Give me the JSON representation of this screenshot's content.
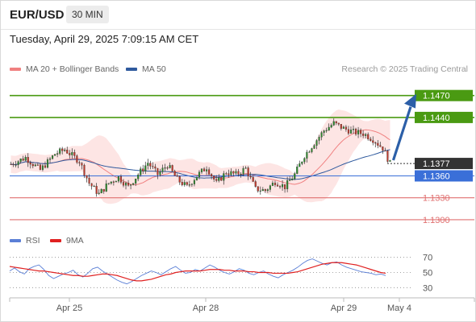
{
  "header": {
    "symbol": "EUR/USD",
    "timeframe": "30 MIN"
  },
  "datetime": "Tuesday, April 29, 2025 7:09:15 AM CET",
  "legend": {
    "ma20": {
      "label": "MA 20 + Bollinger Bands",
      "color": "#f08080"
    },
    "ma50": {
      "label": "MA 50",
      "color": "#2f5a9e"
    }
  },
  "research": "Research © 2025 Trading Central",
  "rsi_legend": {
    "rsi": {
      "label": "RSI",
      "color": "#5b7fd6"
    },
    "ma9": {
      "label": "9MA",
      "color": "#e02020"
    }
  },
  "chart_data": [
    {
      "type": "candlestick",
      "ylim": [
        1.129,
        1.1495
      ],
      "x_ticks": [
        "Apr 25",
        "Apr 28",
        "Apr 29",
        "May 4"
      ],
      "levels": [
        {
          "value": 1.147,
          "label": "1.1470",
          "kind": "resistance",
          "color": "#4a9a12"
        },
        {
          "value": 1.144,
          "label": "1.1440",
          "kind": "resistance",
          "color": "#4a9a12"
        },
        {
          "value": 1.1377,
          "label": "1.1377",
          "kind": "current",
          "color": "#333333"
        },
        {
          "value": 1.136,
          "label": "1.1360",
          "kind": "pivot",
          "color": "#3a6fd8"
        },
        {
          "value": 1.133,
          "label": "1.1330",
          "kind": "support",
          "color": "#e07070"
        },
        {
          "value": 1.13,
          "label": "1.1300",
          "kind": "support",
          "color": "#e07070"
        }
      ],
      "forecast_target": 1.147,
      "candle_count": 156,
      "close_path": [
        [
          0,
          1.1376
        ],
        [
          6,
          1.1385
        ],
        [
          12,
          1.1368
        ],
        [
          18,
          1.139
        ],
        [
          22,
          1.1396
        ],
        [
          28,
          1.138
        ],
        [
          32,
          1.135
        ],
        [
          36,
          1.1335
        ],
        [
          40,
          1.135
        ],
        [
          44,
          1.1358
        ],
        [
          48,
          1.1345
        ],
        [
          52,
          1.1362
        ],
        [
          56,
          1.1378
        ],
        [
          60,
          1.1362
        ],
        [
          64,
          1.1375
        ],
        [
          68,
          1.1355
        ],
        [
          72,
          1.1345
        ],
        [
          76,
          1.136
        ],
        [
          80,
          1.1372
        ],
        [
          84,
          1.135
        ],
        [
          88,
          1.1365
        ],
        [
          92,
          1.1362
        ],
        [
          96,
          1.137
        ],
        [
          100,
          1.1342
        ],
        [
          104,
          1.134
        ],
        [
          108,
          1.1352
        ],
        [
          112,
          1.1345
        ],
        [
          116,
          1.1362
        ],
        [
          120,
          1.1388
        ],
        [
          124,
          1.1405
        ],
        [
          128,
          1.1422
        ],
        [
          132,
          1.1432
        ],
        [
          136,
          1.1425
        ],
        [
          140,
          1.142
        ],
        [
          144,
          1.1418
        ],
        [
          148,
          1.141
        ],
        [
          152,
          1.1398
        ],
        [
          155,
          1.1377
        ]
      ]
    },
    {
      "type": "line",
      "title": "RSI",
      "ylim": [
        25,
        75
      ],
      "yticks": [
        70,
        50,
        30
      ],
      "series": [
        {
          "name": "RSI",
          "color": "#5b7fd6",
          "values": [
            52,
            56,
            51,
            48,
            55,
            58,
            60,
            54,
            46,
            42,
            45,
            48,
            50,
            53,
            47,
            44,
            49,
            55,
            57,
            52,
            48,
            44,
            40,
            37,
            35,
            38,
            42,
            46,
            49,
            52,
            50,
            47,
            51,
            55,
            58,
            53,
            49,
            50,
            54,
            52,
            56,
            60,
            57,
            53,
            50,
            48,
            51,
            55,
            53,
            49,
            47,
            50,
            52,
            48,
            45,
            43,
            47,
            50,
            53,
            57,
            62,
            66,
            68,
            65,
            62,
            60,
            63,
            64,
            60,
            57,
            55,
            53,
            51,
            50,
            49,
            47,
            48,
            46
          ]
        },
        {
          "name": "9MA",
          "color": "#e02020",
          "values": [
            58,
            57,
            56,
            55,
            54,
            53,
            52,
            52,
            51,
            50,
            49,
            48,
            47,
            46,
            46,
            45,
            45,
            46,
            47,
            48,
            48,
            47,
            46,
            44,
            42,
            40,
            39,
            39,
            40,
            41,
            43,
            45,
            47,
            48,
            50,
            51,
            52,
            52,
            52,
            52,
            53,
            54,
            54,
            54,
            53,
            53,
            52,
            52,
            52,
            51,
            51,
            50,
            50,
            50,
            49,
            49,
            49,
            49,
            50,
            51,
            53,
            55,
            57,
            59,
            61,
            62,
            63,
            63,
            63,
            62,
            61,
            60,
            58,
            56,
            54,
            52,
            50,
            49
          ]
        }
      ]
    }
  ]
}
